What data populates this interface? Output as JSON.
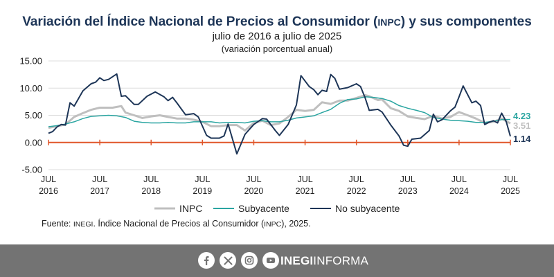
{
  "header": {
    "title_main": "Variación del Índice Nacional de Precios al Consumidor (",
    "title_abbr": "INPC",
    "title_rest": ") y sus componentes",
    "subtitle": "julio de 2016 a julio de 2025",
    "subtitle2": "(variación porcentual anual)"
  },
  "source": {
    "prefix": "Fuente: ",
    "org": "INEGI",
    "middle": ". Índice Nacional de Precios al Consumidor (",
    "abbr": "INPC",
    "suffix": "), 2025."
  },
  "footer": {
    "brand_bold": "INEGI",
    "brand_light": "INFORMA",
    "icons": [
      "facebook-icon",
      "x-icon",
      "instagram-icon",
      "youtube-icon"
    ],
    "background": "#737373"
  },
  "chart_data": {
    "type": "line",
    "ylim": [
      -5,
      15
    ],
    "yticks": [
      "15.00",
      "10.00",
      "5.00",
      "0.00",
      "-5.00"
    ],
    "ytick_values": [
      15,
      10,
      5,
      0,
      -5
    ],
    "xlim": [
      2016.5,
      2025.5
    ],
    "xtick_values": [
      2016.5,
      2017.5,
      2018.5,
      2019.5,
      2020.5,
      2021.5,
      2022.5,
      2023.5,
      2024.5,
      2025.5
    ],
    "xtick_top": [
      "JUL",
      "JUL",
      "JUL",
      "JUL",
      "JUL",
      "JUL",
      "JUL",
      "JUL",
      "JUL",
      "JUL"
    ],
    "xtick_bottom": [
      "2016",
      "2017",
      "2018",
      "2019",
      "2020",
      "2021",
      "2022",
      "2023",
      "2024",
      "2025"
    ],
    "zero_line_color": "#e0562a",
    "series": [
      {
        "name": "INPC",
        "color": "#bfbfbf",
        "last_label": "3.51",
        "points": [
          [
            2016.5,
            2.7
          ],
          [
            2016.67,
            3.0
          ],
          [
            2016.83,
            3.3
          ],
          [
            2017.0,
            4.7
          ],
          [
            2017.17,
            5.4
          ],
          [
            2017.33,
            6.0
          ],
          [
            2017.5,
            6.4
          ],
          [
            2017.67,
            6.4
          ],
          [
            2017.75,
            6.4
          ],
          [
            2017.92,
            6.7
          ],
          [
            2018.0,
            5.5
          ],
          [
            2018.17,
            5.0
          ],
          [
            2018.33,
            4.5
          ],
          [
            2018.5,
            4.8
          ],
          [
            2018.67,
            5.0
          ],
          [
            2018.83,
            4.7
          ],
          [
            2019.0,
            4.4
          ],
          [
            2019.17,
            4.4
          ],
          [
            2019.33,
            4.2
          ],
          [
            2019.5,
            3.8
          ],
          [
            2019.67,
            3.0
          ],
          [
            2019.83,
            3.0
          ],
          [
            2020.0,
            3.2
          ],
          [
            2020.17,
            3.2
          ],
          [
            2020.33,
            2.2
          ],
          [
            2020.5,
            3.6
          ],
          [
            2020.67,
            4.0
          ],
          [
            2020.83,
            3.2
          ],
          [
            2021.0,
            3.5
          ],
          [
            2021.17,
            4.7
          ],
          [
            2021.33,
            6.0
          ],
          [
            2021.5,
            5.8
          ],
          [
            2021.67,
            6.0
          ],
          [
            2021.83,
            7.4
          ],
          [
            2022.0,
            7.1
          ],
          [
            2022.17,
            7.7
          ],
          [
            2022.33,
            7.7
          ],
          [
            2022.5,
            8.2
          ],
          [
            2022.67,
            8.7
          ],
          [
            2022.75,
            8.5
          ],
          [
            2022.92,
            7.8
          ],
          [
            2023.0,
            7.9
          ],
          [
            2023.17,
            6.3
          ],
          [
            2023.33,
            5.8
          ],
          [
            2023.5,
            4.8
          ],
          [
            2023.67,
            4.5
          ],
          [
            2023.83,
            4.3
          ],
          [
            2024.0,
            4.9
          ],
          [
            2024.17,
            4.4
          ],
          [
            2024.33,
            4.7
          ],
          [
            2024.5,
            5.6
          ],
          [
            2024.67,
            5.0
          ],
          [
            2024.83,
            4.4
          ],
          [
            2025.0,
            3.6
          ],
          [
            2025.17,
            3.8
          ],
          [
            2025.33,
            4.4
          ],
          [
            2025.5,
            3.51
          ]
        ]
      },
      {
        "name": "Subyacente",
        "color": "#2aa5a1",
        "last_label": "4.23",
        "points": [
          [
            2016.5,
            2.9
          ],
          [
            2016.67,
            3.1
          ],
          [
            2016.83,
            3.4
          ],
          [
            2017.0,
            3.8
          ],
          [
            2017.17,
            4.4
          ],
          [
            2017.33,
            4.8
          ],
          [
            2017.5,
            4.9
          ],
          [
            2017.67,
            5.0
          ],
          [
            2017.83,
            4.9
          ],
          [
            2018.0,
            4.6
          ],
          [
            2018.17,
            3.9
          ],
          [
            2018.33,
            3.7
          ],
          [
            2018.5,
            3.6
          ],
          [
            2018.67,
            3.6
          ],
          [
            2018.83,
            3.7
          ],
          [
            2019.0,
            3.6
          ],
          [
            2019.17,
            3.6
          ],
          [
            2019.33,
            3.8
          ],
          [
            2019.5,
            3.8
          ],
          [
            2019.67,
            3.8
          ],
          [
            2019.83,
            3.6
          ],
          [
            2020.0,
            3.7
          ],
          [
            2020.17,
            3.7
          ],
          [
            2020.33,
            3.6
          ],
          [
            2020.5,
            3.9
          ],
          [
            2020.67,
            4.0
          ],
          [
            2020.83,
            3.8
          ],
          [
            2021.0,
            3.8
          ],
          [
            2021.17,
            4.1
          ],
          [
            2021.33,
            4.5
          ],
          [
            2021.5,
            4.7
          ],
          [
            2021.67,
            4.9
          ],
          [
            2021.83,
            5.5
          ],
          [
            2022.0,
            6.1
          ],
          [
            2022.17,
            7.2
          ],
          [
            2022.33,
            7.9
          ],
          [
            2022.5,
            8.0
          ],
          [
            2022.67,
            8.4
          ],
          [
            2022.83,
            8.3
          ],
          [
            2023.0,
            8.1
          ],
          [
            2023.17,
            7.6
          ],
          [
            2023.33,
            6.8
          ],
          [
            2023.5,
            6.3
          ],
          [
            2023.67,
            5.9
          ],
          [
            2023.83,
            5.5
          ],
          [
            2024.0,
            4.6
          ],
          [
            2024.17,
            4.3
          ],
          [
            2024.33,
            4.1
          ],
          [
            2024.5,
            4.0
          ],
          [
            2024.67,
            3.9
          ],
          [
            2024.83,
            3.7
          ],
          [
            2025.0,
            3.7
          ],
          [
            2025.17,
            3.9
          ],
          [
            2025.33,
            4.2
          ],
          [
            2025.5,
            4.23
          ]
        ]
      },
      {
        "name": "No subyacente",
        "color": "#1d3557",
        "last_label": "1.14",
        "points": [
          [
            2016.5,
            1.7
          ],
          [
            2016.58,
            2.0
          ],
          [
            2016.67,
            2.9
          ],
          [
            2016.75,
            3.3
          ],
          [
            2016.83,
            3.2
          ],
          [
            2016.92,
            7.3
          ],
          [
            2017.0,
            6.7
          ],
          [
            2017.17,
            9.5
          ],
          [
            2017.33,
            10.8
          ],
          [
            2017.42,
            11.1
          ],
          [
            2017.5,
            11.9
          ],
          [
            2017.58,
            11.4
          ],
          [
            2017.67,
            11.6
          ],
          [
            2017.83,
            12.6
          ],
          [
            2017.92,
            8.5
          ],
          [
            2018.0,
            8.6
          ],
          [
            2018.17,
            7.0
          ],
          [
            2018.25,
            7.0
          ],
          [
            2018.42,
            8.5
          ],
          [
            2018.58,
            9.3
          ],
          [
            2018.75,
            8.4
          ],
          [
            2018.83,
            7.7
          ],
          [
            2018.92,
            8.3
          ],
          [
            2019.0,
            7.3
          ],
          [
            2019.17,
            5.1
          ],
          [
            2019.33,
            5.3
          ],
          [
            2019.42,
            4.7
          ],
          [
            2019.58,
            1.3
          ],
          [
            2019.67,
            0.8
          ],
          [
            2019.83,
            0.8
          ],
          [
            2019.92,
            1.2
          ],
          [
            2020.0,
            3.4
          ],
          [
            2020.17,
            -2.1
          ],
          [
            2020.33,
            1.5
          ],
          [
            2020.5,
            3.3
          ],
          [
            2020.67,
            4.4
          ],
          [
            2020.75,
            4.3
          ],
          [
            2020.92,
            2.2
          ],
          [
            2021.0,
            1.3
          ],
          [
            2021.17,
            3.3
          ],
          [
            2021.33,
            6.9
          ],
          [
            2021.42,
            12.3
          ],
          [
            2021.58,
            10.3
          ],
          [
            2021.67,
            9.7
          ],
          [
            2021.75,
            8.8
          ],
          [
            2021.83,
            9.6
          ],
          [
            2021.92,
            9.4
          ],
          [
            2022.0,
            12.5
          ],
          [
            2022.08,
            11.8
          ],
          [
            2022.17,
            9.8
          ],
          [
            2022.33,
            10.1
          ],
          [
            2022.5,
            10.8
          ],
          [
            2022.58,
            10.3
          ],
          [
            2022.67,
            8.2
          ],
          [
            2022.75,
            5.9
          ],
          [
            2022.92,
            6.1
          ],
          [
            2023.0,
            5.6
          ],
          [
            2023.17,
            3.2
          ],
          [
            2023.33,
            1.2
          ],
          [
            2023.42,
            -0.5
          ],
          [
            2023.5,
            -0.7
          ],
          [
            2023.58,
            0.6
          ],
          [
            2023.75,
            0.8
          ],
          [
            2023.92,
            2.2
          ],
          [
            2024.0,
            5.2
          ],
          [
            2024.08,
            3.8
          ],
          [
            2024.17,
            4.2
          ],
          [
            2024.33,
            5.8
          ],
          [
            2024.42,
            6.5
          ],
          [
            2024.5,
            8.4
          ],
          [
            2024.58,
            10.4
          ],
          [
            2024.75,
            7.3
          ],
          [
            2024.83,
            7.6
          ],
          [
            2024.92,
            6.8
          ],
          [
            2025.0,
            3.3
          ],
          [
            2025.08,
            3.7
          ],
          [
            2025.17,
            4.0
          ],
          [
            2025.25,
            3.6
          ],
          [
            2025.33,
            5.4
          ],
          [
            2025.42,
            3.8
          ],
          [
            2025.5,
            1.14
          ]
        ]
      }
    ]
  }
}
